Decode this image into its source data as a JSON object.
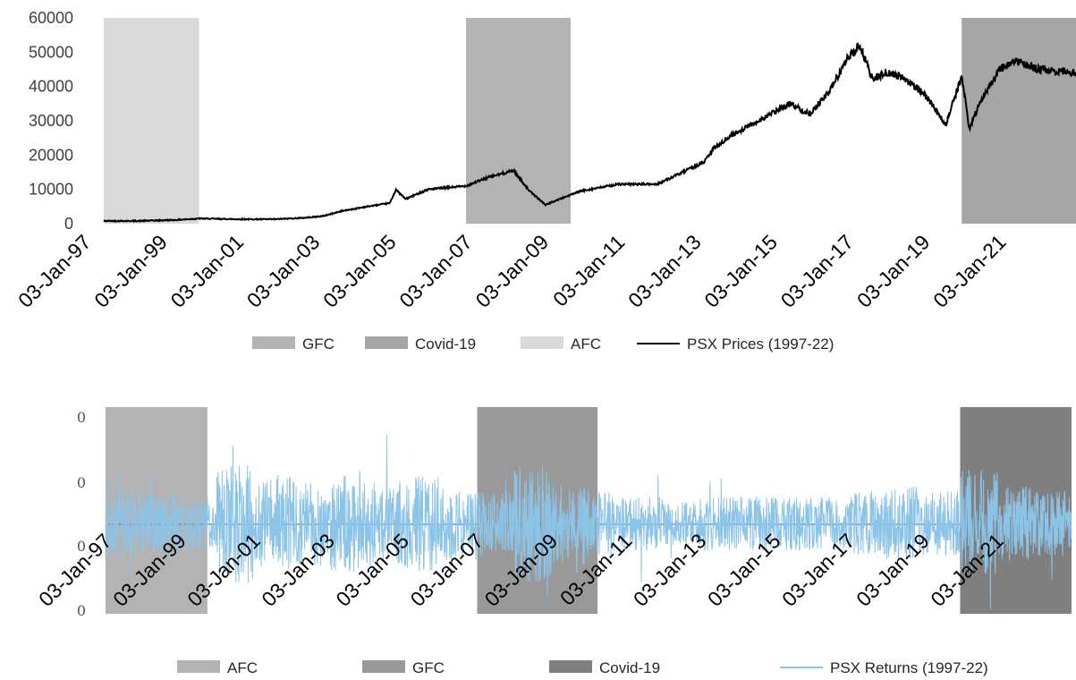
{
  "chart_data": [
    {
      "type": "line",
      "title": "",
      "xlabel": "",
      "ylabel": "",
      "ylim": [
        0,
        60000
      ],
      "y_ticks": [
        "0",
        "10000",
        "20000",
        "30000",
        "40000",
        "50000",
        "60000"
      ],
      "x_ticks": [
        "03-Jan-97",
        "03-Jan-99",
        "03-Jan-01",
        "03-Jan-03",
        "03-Jan-05",
        "03-Jan-07",
        "03-Jan-09",
        "03-Jan-11",
        "03-Jan-13",
        "03-Jan-15",
        "03-Jan-17",
        "03-Jan-19",
        "03-Jan-21"
      ],
      "xlim": [
        "1997-01-03",
        "2022-12-31"
      ],
      "grid": false,
      "legend_position": "bottom",
      "shaded_periods": [
        {
          "name": "AFC",
          "start": "1997-07-01",
          "end": "1999-12-31",
          "color": "#d9d9d9"
        },
        {
          "name": "GFC",
          "start": "2007-01-01",
          "end": "2009-09-30",
          "color": "#b3b3b3"
        },
        {
          "name": "Covid-19",
          "start": "2020-01-01",
          "end": "2022-12-31",
          "color": "#a6a6a6"
        }
      ],
      "legend": [
        {
          "label": "GFC",
          "kind": "box",
          "color": "#b3b3b3"
        },
        {
          "label": "Covid-19",
          "kind": "box",
          "color": "#a6a6a6"
        },
        {
          "label": "AFC",
          "kind": "box",
          "color": "#d9d9d9"
        },
        {
          "label": "PSX Prices (1997-22)",
          "kind": "line",
          "color": "#000000"
        }
      ],
      "series": [
        {
          "name": "PSX Prices (1997-22)",
          "color": "#000000",
          "points": [
            [
              "1997-07-01",
              800
            ],
            [
              "1998-06-01",
              800
            ],
            [
              "1999-06-01",
              1100
            ],
            [
              "2000-01-01",
              1500
            ],
            [
              "2001-01-01",
              1300
            ],
            [
              "2002-01-01",
              1300
            ],
            [
              "2002-10-01",
              1700
            ],
            [
              "2003-04-01",
              2200
            ],
            [
              "2003-10-01",
              3700
            ],
            [
              "2004-06-01",
              5000
            ],
            [
              "2005-01-01",
              6000
            ],
            [
              "2005-03-01",
              9900
            ],
            [
              "2005-06-01",
              7200
            ],
            [
              "2006-01-01",
              10000
            ],
            [
              "2006-07-01",
              10500
            ],
            [
              "2007-01-01",
              11000
            ],
            [
              "2007-08-01",
              13500
            ],
            [
              "2008-04-01",
              15500
            ],
            [
              "2008-09-01",
              9500
            ],
            [
              "2009-02-01",
              5500
            ],
            [
              "2009-06-01",
              7000
            ],
            [
              "2010-01-01",
              9500
            ],
            [
              "2011-01-01",
              11500
            ],
            [
              "2012-01-01",
              11500
            ],
            [
              "2012-07-01",
              14000
            ],
            [
              "2013-04-01",
              18000
            ],
            [
              "2013-07-01",
              22000
            ],
            [
              "2014-01-01",
              26000
            ],
            [
              "2014-07-01",
              29000
            ],
            [
              "2015-01-01",
              32000
            ],
            [
              "2015-07-01",
              35000
            ],
            [
              "2016-01-01",
              32000
            ],
            [
              "2016-07-01",
              38000
            ],
            [
              "2017-01-01",
              48000
            ],
            [
              "2017-05-01",
              52000
            ],
            [
              "2017-09-01",
              42000
            ],
            [
              "2018-01-01",
              44000
            ],
            [
              "2018-06-01",
              43000
            ],
            [
              "2019-01-01",
              38000
            ],
            [
              "2019-08-01",
              29000
            ],
            [
              "2020-01-01",
              43000
            ],
            [
              "2020-03-15",
              27500
            ],
            [
              "2020-07-01",
              36000
            ],
            [
              "2021-01-01",
              45000
            ],
            [
              "2021-06-01",
              47500
            ],
            [
              "2022-01-01",
              45000
            ],
            [
              "2022-12-31",
              44000
            ]
          ]
        }
      ]
    },
    {
      "type": "line",
      "title": "",
      "xlabel": "",
      "ylabel": "",
      "y_ticks": [
        "0",
        "0",
        "0",
        "0"
      ],
      "x_ticks": [
        "03-Jan-97",
        "03-Jan-99",
        "03-Jan-01",
        "03-Jan-03",
        "03-Jan-05",
        "03-Jan-07",
        "03-Jan-09",
        "03-Jan-11",
        "03-Jan-13",
        "03-Jan-15",
        "03-Jan-17",
        "03-Jan-19",
        "03-Jan-21"
      ],
      "xlim": [
        "1997-01-03",
        "2022-12-31"
      ],
      "grid": false,
      "legend_position": "bottom",
      "shaded_periods": [
        {
          "name": "AFC",
          "start": "1997-01-03",
          "end": "1999-09-30",
          "color": "#b3b3b3"
        },
        {
          "name": "GFC",
          "start": "2007-01-03",
          "end": "2010-03-31",
          "color": "#999999"
        },
        {
          "name": "Covid-19",
          "start": "2020-01-01",
          "end": "2022-12-31",
          "color": "#7f7f7f"
        }
      ],
      "legend": [
        {
          "label": "AFC",
          "kind": "box",
          "color": "#b3b3b3"
        },
        {
          "label": "GFC",
          "kind": "box",
          "color": "#999999"
        },
        {
          "label": "Covid-19",
          "kind": "box",
          "color": "#7f7f7f"
        },
        {
          "label": "PSX Returns (1997-22)",
          "kind": "line",
          "color": "#8cc4e8"
        }
      ],
      "series": [
        {
          "name": "PSX Returns (1997-22)",
          "color": "#8cc4e8",
          "values_note_free": true,
          "volatility_by_year": [
            [
              1997,
              0.35
            ],
            [
              1998,
              0.3
            ],
            [
              1999,
              0.25
            ],
            [
              2000,
              0.55
            ],
            [
              2001,
              0.45
            ],
            [
              2002,
              0.4
            ],
            [
              2003,
              0.45
            ],
            [
              2004,
              0.4
            ],
            [
              2005,
              0.45
            ],
            [
              2006,
              0.35
            ],
            [
              2007,
              0.3
            ],
            [
              2008,
              0.55
            ],
            [
              2009,
              0.4
            ],
            [
              2010,
              0.3
            ],
            [
              2011,
              0.25
            ],
            [
              2012,
              0.2
            ],
            [
              2013,
              0.25
            ],
            [
              2014,
              0.25
            ],
            [
              2015,
              0.25
            ],
            [
              2016,
              0.25
            ],
            [
              2017,
              0.3
            ],
            [
              2018,
              0.35
            ],
            [
              2019,
              0.3
            ],
            [
              2020,
              0.5
            ],
            [
              2021,
              0.35
            ],
            [
              2022,
              0.3
            ]
          ]
        }
      ]
    }
  ]
}
